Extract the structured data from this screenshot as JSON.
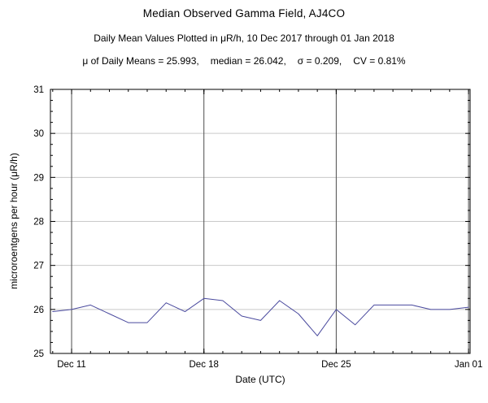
{
  "page": {
    "title": "Median Observed Gamma Field, AJ4CO",
    "subtitle": "Daily Mean Values Plotted in μR/h, 10 Dec 2017 through 01 Jan 2018",
    "stats": {
      "mean": "μ of Daily Means = 25.993,",
      "median": "median = 26.042,",
      "sigma": "σ = 0.209,",
      "cv": "CV = 0.81%"
    }
  },
  "chart_data": {
    "type": "line",
    "title": "Median Observed Gamma Field, AJ4CO",
    "subtitle": "Daily Mean Values Plotted in μR/h, 10 Dec 2017 through 01 Jan 2018",
    "xlabel": "Date (UTC)",
    "ylabel": "microroentgens per hour (μR/h)",
    "ylim": [
      25,
      31
    ],
    "y_ticks": [
      25,
      26,
      27,
      28,
      29,
      30,
      31
    ],
    "x_ticks": [
      {
        "label": "Dec 11",
        "day": 1
      },
      {
        "label": "Dec 18",
        "day": 8
      },
      {
        "label": "Dec 25",
        "day": 15
      },
      {
        "label": "Jan 01",
        "day": 22
      }
    ],
    "x_dates": [
      "Dec 10",
      "Dec 11",
      "Dec 12",
      "Dec 13",
      "Dec 14",
      "Dec 15",
      "Dec 16",
      "Dec 17",
      "Dec 18",
      "Dec 19",
      "Dec 20",
      "Dec 21",
      "Dec 22",
      "Dec 23",
      "Dec 24",
      "Dec 25",
      "Dec 26",
      "Dec 27",
      "Dec 28",
      "Dec 29",
      "Dec 30",
      "Dec 31",
      "Jan 01"
    ],
    "values": [
      25.95,
      26.0,
      26.1,
      25.9,
      25.7,
      25.7,
      26.15,
      25.95,
      26.25,
      26.2,
      25.85,
      25.75,
      26.2,
      25.9,
      25.4,
      26.0,
      25.65,
      26.1,
      26.1,
      26.1,
      26.0,
      26.0,
      26.05
    ],
    "stats": {
      "mean": 25.993,
      "median": 26.042,
      "sigma": 0.209,
      "cv_percent": 0.81
    },
    "grid": true,
    "legend": "none",
    "line_color": "#4a4a9e",
    "h_grid_color": "#c9c9c9",
    "v_grid_color": "#4d4d4d",
    "frame_color": "#000000"
  }
}
